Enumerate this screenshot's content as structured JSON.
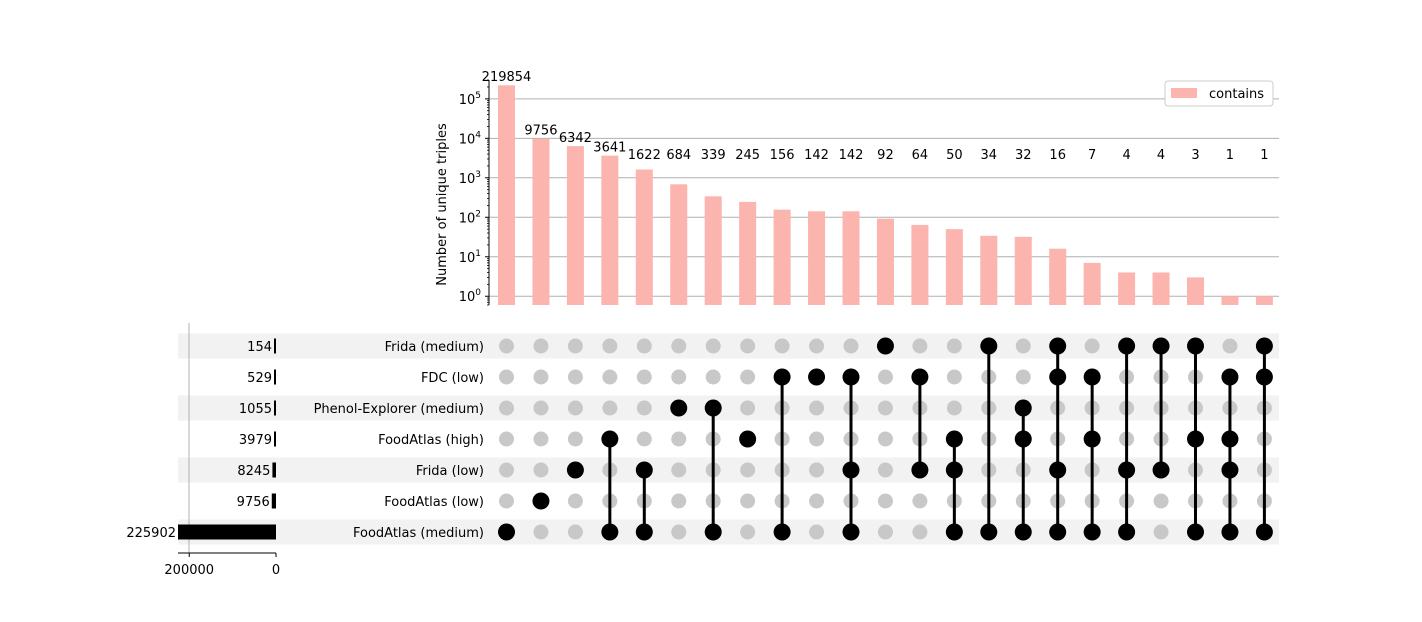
{
  "chart_data": {
    "type": "upset",
    "ylabel": "Number of unique triples",
    "yscale": "log",
    "ylim": [
      0.6,
      300000
    ],
    "yticks": [
      {
        "value": 1,
        "base": "10",
        "exp": "0"
      },
      {
        "value": 10,
        "base": "10",
        "exp": "1"
      },
      {
        "value": 100,
        "base": "10",
        "exp": "2"
      },
      {
        "value": 1000,
        "base": "10",
        "exp": "3"
      },
      {
        "value": 10000,
        "base": "10",
        "exp": "4"
      },
      {
        "value": 100000,
        "base": "10",
        "exp": "5"
      }
    ],
    "legend": {
      "label": "contains",
      "placement": "top-right"
    },
    "grid": true,
    "bar_color": "#fbb4ae",
    "dot_active_color": "#000000",
    "dot_inactive_color": "#c8c8c8",
    "stripe_color": "#f2f2f2",
    "sets": [
      {
        "name": "Frida (medium)",
        "size": 154
      },
      {
        "name": "FDC (low)",
        "size": 529
      },
      {
        "name": "Phenol-Explorer (medium)",
        "size": 1055
      },
      {
        "name": "FoodAtlas (high)",
        "size": 3979
      },
      {
        "name": "Frida (low)",
        "size": 8245
      },
      {
        "name": "FoodAtlas (low)",
        "size": 9756
      },
      {
        "name": "FoodAtlas (medium)",
        "size": 225902
      }
    ],
    "set_size_axis": {
      "max": 225902,
      "ticks": [
        {
          "value": 200000,
          "label": "200000"
        },
        {
          "value": 0,
          "label": "0"
        }
      ]
    },
    "intersections": [
      {
        "value": 219854,
        "label": "219854",
        "members": [
          6
        ]
      },
      {
        "value": 9756,
        "label": "9756",
        "members": [
          5
        ]
      },
      {
        "value": 6342,
        "label": "6342",
        "members": [
          4
        ]
      },
      {
        "value": 3641,
        "label": "3641",
        "members": [
          3,
          6
        ]
      },
      {
        "value": 1622,
        "label": "1622",
        "members": [
          4,
          6
        ]
      },
      {
        "value": 684,
        "label": "684",
        "members": [
          2
        ]
      },
      {
        "value": 339,
        "label": "339",
        "members": [
          2,
          6
        ]
      },
      {
        "value": 245,
        "label": "245",
        "members": [
          3
        ]
      },
      {
        "value": 156,
        "label": "156",
        "members": [
          1,
          6
        ]
      },
      {
        "value": 142,
        "label": "142",
        "members": [
          1
        ]
      },
      {
        "value": 142,
        "label": "142",
        "members": [
          1,
          4,
          6
        ]
      },
      {
        "value": 92,
        "label": "92",
        "members": [
          0
        ]
      },
      {
        "value": 64,
        "label": "64",
        "members": [
          1,
          4
        ]
      },
      {
        "value": 50,
        "label": "50",
        "members": [
          3,
          4,
          6
        ]
      },
      {
        "value": 34,
        "label": "34",
        "members": [
          0,
          6
        ]
      },
      {
        "value": 32,
        "label": "32",
        "members": [
          2,
          3,
          6
        ]
      },
      {
        "value": 16,
        "label": "16",
        "members": [
          0,
          1,
          4,
          6
        ]
      },
      {
        "value": 7,
        "label": "7",
        "members": [
          1,
          3,
          6
        ]
      },
      {
        "value": 4,
        "label": "4",
        "members": [
          0,
          4,
          6
        ]
      },
      {
        "value": 4,
        "label": "4",
        "members": [
          0,
          4
        ]
      },
      {
        "value": 3,
        "label": "3",
        "members": [
          0,
          3,
          6
        ]
      },
      {
        "value": 1,
        "label": "1",
        "members": [
          1,
          3,
          4,
          6
        ]
      },
      {
        "value": 1,
        "label": "1",
        "members": [
          0,
          1,
          6
        ]
      }
    ]
  }
}
